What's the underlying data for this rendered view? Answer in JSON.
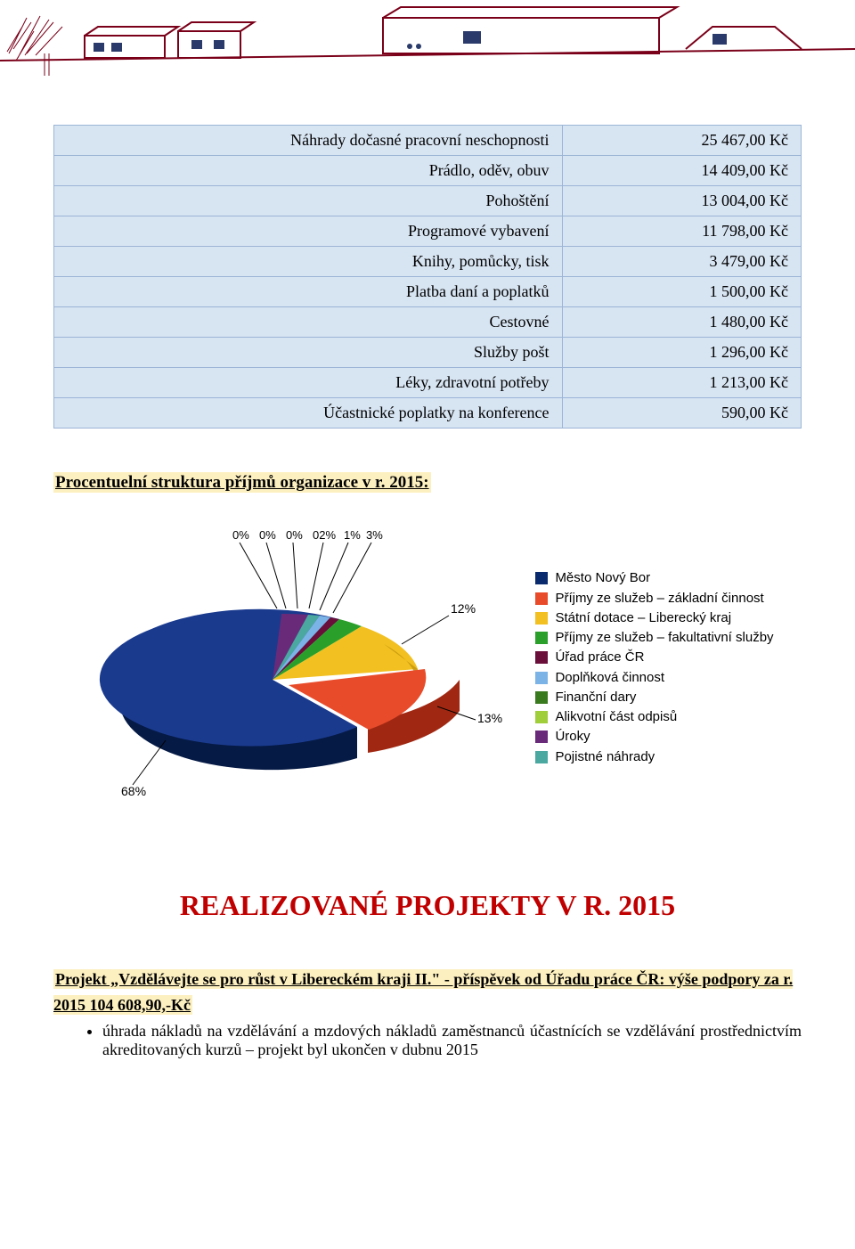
{
  "header_graphic": {
    "line_color": "#7a0019",
    "accent_color": "#2a3a6a"
  },
  "table": {
    "rows": [
      {
        "label": "Náhrady dočasné pracovní neschopnosti",
        "value": "25 467,00 Kč"
      },
      {
        "label": "Prádlo, oděv, obuv",
        "value": "14 409,00 Kč"
      },
      {
        "label": "Pohoštění",
        "value": "13 004,00 Kč"
      },
      {
        "label": "Programové vybavení",
        "value": "11 798,00 Kč"
      },
      {
        "label": "Knihy, pomůcky, tisk",
        "value": "3 479,00 Kč"
      },
      {
        "label": "Platba daní a poplatků",
        "value": "1 500,00 Kč"
      },
      {
        "label": "Cestovné",
        "value": "1 480,00 Kč"
      },
      {
        "label": "Služby pošt",
        "value": "1 296,00 Kč"
      },
      {
        "label": "Léky, zdravotní potřeby",
        "value": "1 213,00 Kč"
      },
      {
        "label": "Účastnické poplatky na konference",
        "value": "590,00 Kč"
      }
    ],
    "header_bg": "#d7e4f2",
    "border_color": "#9cb5d6"
  },
  "struct_title": "Procentuelní struktura příjmů organizace v r. 2015:",
  "chart": {
    "type": "pie-3d",
    "background": "#ffffff",
    "labels_top": [
      "0%",
      "0%",
      "0%",
      "02%",
      "1%",
      "3%"
    ],
    "label_12": "12%",
    "label_13": "13%",
    "label_68": "68%",
    "slices": [
      {
        "name": "Město Nový Bor",
        "color": "#0a2a6e",
        "pct": 68
      },
      {
        "name": "Příjmy ze služeb – základní činnost",
        "color": "#e84b2a",
        "pct": 13
      },
      {
        "name": "Státní dotace – Liberecký kraj",
        "color": "#f2c020",
        "pct": 12
      },
      {
        "name": "Příjmy ze služeb – fakultativní služby",
        "color": "#2aa02a",
        "pct": 3
      },
      {
        "name": "Úřad práce ČR",
        "color": "#6a0f3a",
        "pct": 1
      },
      {
        "name": "Doplňková činnost",
        "color": "#7bb3e6",
        "pct": 2
      },
      {
        "name": "Finanční dary",
        "color": "#3a7a1e",
        "pct": 0
      },
      {
        "name": "Alikvotní část odpisů",
        "color": "#a0cd3a",
        "pct": 0
      },
      {
        "name": "Úroky",
        "color": "#6a2a7a",
        "pct": 0
      },
      {
        "name": "Pojistné náhrady",
        "color": "#4aa8a0",
        "pct": 0
      }
    ],
    "legend_font": "Arial",
    "legend_fontsize": 15
  },
  "projects_heading": "REALIZOVANÉ PROJEKTY V R. 2015",
  "project": {
    "title_line": "Projekt „Vzdělávejte se pro růst v Libereckém kraji II.\" - příspěvek od Úřadu práce ČR: výše podpory za r. 2015 104 608,90,-Kč",
    "bullet": "úhrada nákladů na vzdělávání a mzdových nákladů zaměstnanců účastnících se vzdělávání prostřednictvím akreditovaných kurzů – projekt byl ukončen v dubnu 2015"
  }
}
